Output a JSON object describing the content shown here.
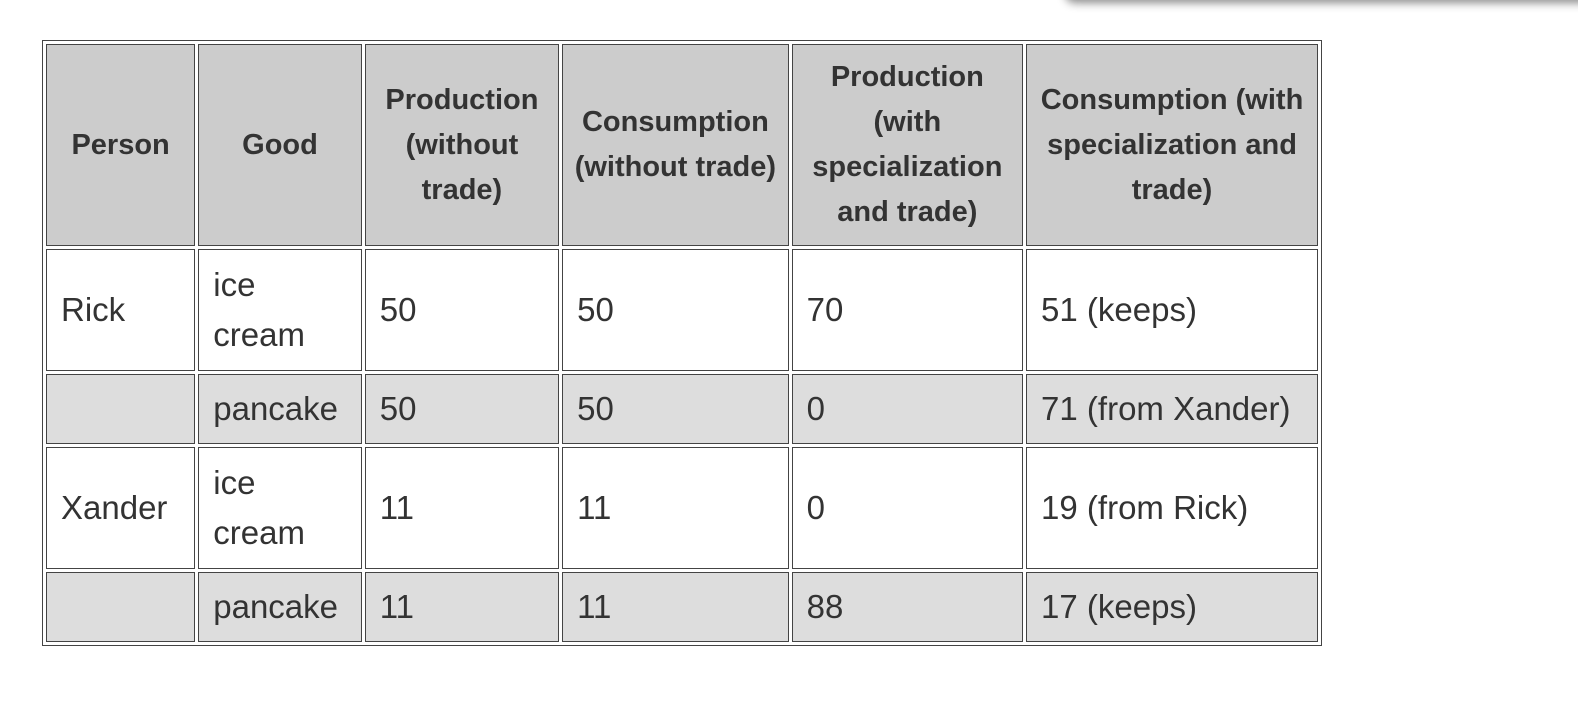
{
  "table": {
    "headers": [
      "Person",
      "Good",
      "Production (without trade)",
      "Consumption (without trade)",
      "Production (with specialization and trade)",
      "Consumption (with specialization and trade)"
    ],
    "rows": [
      [
        "Rick",
        "ice cream",
        "50",
        "50",
        "70",
        "51 (keeps)"
      ],
      [
        "",
        "pancake",
        "50",
        "50",
        "0",
        "71 (from Xander)"
      ],
      [
        "Xander",
        "ice cream",
        "11",
        "11",
        "0",
        "19 (from Rick)"
      ],
      [
        "",
        "pancake",
        "11",
        "11",
        "88",
        "17 (keeps)"
      ]
    ]
  }
}
